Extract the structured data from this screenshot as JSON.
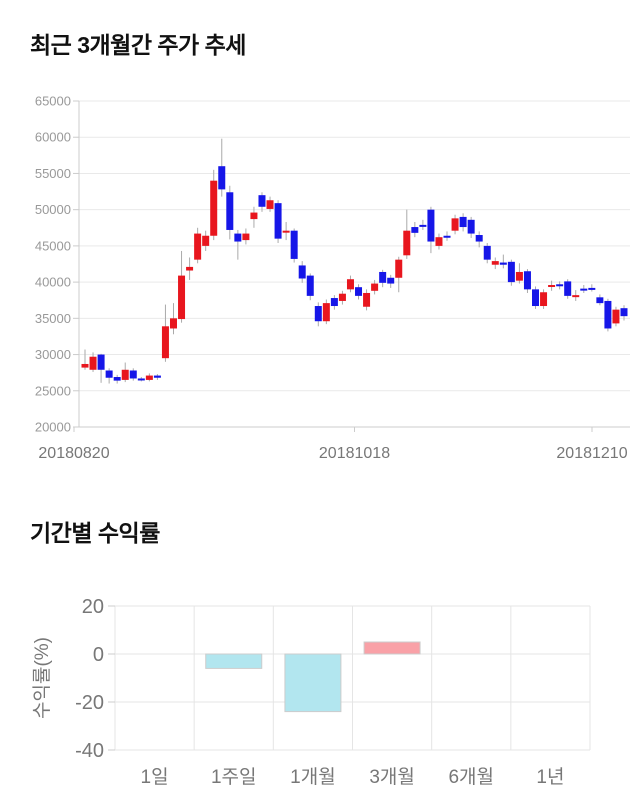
{
  "page": {
    "background": "#ffffff"
  },
  "chart_data": [
    {
      "type": "candlestick",
      "title": "최근 3개월간 주가 추세",
      "ylabel": "",
      "xlabel": "",
      "ylim": [
        20000,
        65000
      ],
      "y_ticks": [
        65000,
        60000,
        55000,
        50000,
        45000,
        40000,
        35000,
        30000,
        25000,
        20000
      ],
      "x_tick_labels": [
        "20180820",
        "20181018",
        "20181210"
      ],
      "grid": "horizontal",
      "colors": {
        "up": "#e8161e",
        "down": "#1616e8",
        "wick": "#aaaaaa",
        "grid": "#e9e9e9",
        "axis": "#cccccc",
        "tick_text": "#999999",
        "date_text": "#777777"
      },
      "candle_format": [
        "open",
        "close",
        "low",
        "high"
      ],
      "candles": [
        [
          28200,
          28700,
          27900,
          30700
        ],
        [
          27900,
          29700,
          27600,
          30300
        ],
        [
          30000,
          27900,
          26100,
          30100
        ],
        [
          27800,
          26800,
          26000,
          28100
        ],
        [
          26900,
          26400,
          26000,
          27200
        ],
        [
          26500,
          27900,
          26200,
          28900
        ],
        [
          27800,
          26700,
          26400,
          28100
        ],
        [
          26700,
          26600,
          26300,
          26900
        ],
        [
          26500,
          27100,
          26300,
          27400
        ],
        [
          27100,
          26800,
          26500,
          27300
        ],
        [
          29500,
          33900,
          29000,
          36900
        ],
        [
          33600,
          35000,
          32800,
          37100
        ],
        [
          34900,
          40900,
          34400,
          44300
        ],
        [
          41600,
          42100,
          40300,
          43400
        ],
        [
          43100,
          46700,
          42600,
          47500
        ],
        [
          45000,
          46400,
          44300,
          47100
        ],
        [
          46400,
          54000,
          45800,
          55500
        ],
        [
          56000,
          52800,
          51800,
          59800
        ],
        [
          52400,
          47200,
          45900,
          53300
        ],
        [
          46700,
          45600,
          43100,
          47200
        ],
        [
          45800,
          46700,
          45200,
          47400
        ],
        [
          48700,
          49600,
          47500,
          50400
        ],
        [
          52000,
          50400,
          49700,
          52400
        ],
        [
          50100,
          51300,
          49700,
          51800
        ],
        [
          50900,
          46000,
          45400,
          51300
        ],
        [
          46900,
          47100,
          45800,
          48300
        ],
        [
          47100,
          43200,
          42700,
          47400
        ],
        [
          42300,
          40500,
          39900,
          42900
        ],
        [
          40900,
          38100,
          37500,
          41200
        ],
        [
          36700,
          34600,
          33900,
          37200
        ],
        [
          34600,
          37100,
          34200,
          37600
        ],
        [
          37800,
          36700,
          36200,
          38200
        ],
        [
          37400,
          38400,
          36900,
          38800
        ],
        [
          39000,
          40400,
          38600,
          40900
        ],
        [
          39300,
          38100,
          37600,
          39700
        ],
        [
          36600,
          38500,
          36100,
          39000
        ],
        [
          38800,
          39800,
          38300,
          40300
        ],
        [
          41400,
          39900,
          39300,
          41700
        ],
        [
          40600,
          39800,
          39200,
          41000
        ],
        [
          40600,
          43100,
          38600,
          43500
        ],
        [
          43700,
          47100,
          43200,
          50000
        ],
        [
          47600,
          46800,
          46200,
          48300
        ],
        [
          47900,
          47800,
          47200,
          48600
        ],
        [
          50000,
          45600,
          44000,
          50400
        ],
        [
          45000,
          46200,
          44500,
          46700
        ],
        [
          46400,
          46300,
          45700,
          47000
        ],
        [
          47100,
          48800,
          46600,
          49300
        ],
        [
          49000,
          47600,
          47000,
          49500
        ],
        [
          48600,
          46700,
          46100,
          49000
        ],
        [
          46500,
          45600,
          44800,
          47000
        ],
        [
          45000,
          43100,
          42600,
          45400
        ],
        [
          42400,
          42900,
          41800,
          43400
        ],
        [
          42700,
          42400,
          41900,
          43800
        ],
        [
          42800,
          40000,
          39500,
          43100
        ],
        [
          40200,
          41400,
          39800,
          42600
        ],
        [
          41500,
          39000,
          38500,
          41800
        ],
        [
          39000,
          36700,
          36300,
          39400
        ],
        [
          36700,
          38600,
          36300,
          39000
        ],
        [
          39500,
          39600,
          38800,
          40200
        ],
        [
          39700,
          39500,
          39000,
          40100
        ],
        [
          40100,
          38100,
          37700,
          40400
        ],
        [
          38100,
          38200,
          37400,
          38900
        ],
        [
          39100,
          39000,
          38500,
          39600
        ],
        [
          39200,
          39100,
          38700,
          39700
        ],
        [
          37900,
          37100,
          36800,
          38300
        ],
        [
          37400,
          33600,
          33200,
          37700
        ],
        [
          34300,
          36200,
          33900,
          36600
        ],
        [
          36400,
          35300,
          34700,
          36800
        ]
      ]
    },
    {
      "type": "bar",
      "title": "기간별 수익률",
      "ylabel": "수익률(%)",
      "xlabel": "",
      "categories": [
        "1일",
        "1주일",
        "1개월",
        "3개월",
        "6개월",
        "1년"
      ],
      "values": [
        0,
        -6,
        -24,
        5,
        0,
        0
      ],
      "ylim": [
        -45,
        25
      ],
      "y_ticks": [
        20,
        0,
        -20,
        -40
      ],
      "grid": "both",
      "legend": "none",
      "colors": {
        "positive": "#f9a1a7",
        "negative": "#b2e6ef",
        "bar_border": "#cccccc",
        "grid": "#e5e5e5",
        "axis": "#cccccc",
        "tick_text": "#777777"
      }
    }
  ]
}
